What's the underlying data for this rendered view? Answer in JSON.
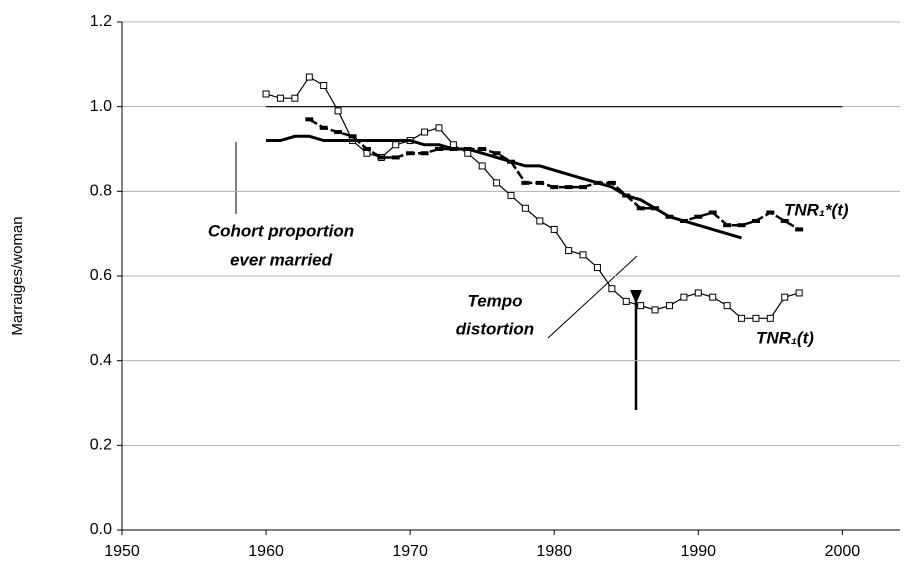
{
  "chart_data": {
    "type": "line",
    "ylabel": "Marraiges/woman",
    "xlim": [
      1950,
      2004
    ],
    "xticks": [
      1950,
      1960,
      1970,
      1980,
      1990,
      2000
    ],
    "ylim": [
      0,
      1.2
    ],
    "yticks": [
      {
        "value": 0,
        "label": "0.0"
      },
      {
        "value": 0.2,
        "label": "0.2"
      },
      {
        "value": 0.4,
        "label": "0.4"
      },
      {
        "value": 0.6,
        "label": "0.6"
      },
      {
        "value": 0.8,
        "label": "0.8"
      },
      {
        "value": 1.0,
        "label": "1.0"
      },
      {
        "value": 1.2,
        "label": "1.2"
      }
    ],
    "grid": true,
    "annotations": [
      "Cohort proportion",
      "ever married",
      "Tempo",
      "distortion"
    ],
    "series": [
      {
        "color": "#000000",
        "style": "thin",
        "x": [
          1960,
          2000
        ],
        "values": [
          1,
          1
        ]
      },
      {
        "name": "TNR₁(t)",
        "color": "#000000",
        "style": "square",
        "x": [
          1960,
          1961,
          1962,
          1963,
          1964,
          1965,
          1966,
          1967,
          1968,
          1969,
          1970,
          1971,
          1972,
          1973,
          1974,
          1975,
          1976,
          1977,
          1978,
          1979,
          1980,
          1981,
          1982,
          1983,
          1984,
          1985,
          1986,
          1987,
          1988,
          1989,
          1990,
          1991,
          1992,
          1993,
          1994,
          1995,
          1996,
          1997
        ],
        "values": [
          1.03,
          1.02,
          1.02,
          1.07,
          1.05,
          0.99,
          0.92,
          0.89,
          0.88,
          0.91,
          0.92,
          0.94,
          0.95,
          0.91,
          0.89,
          0.86,
          0.82,
          0.79,
          0.76,
          0.73,
          0.71,
          0.66,
          0.65,
          0.62,
          0.57,
          0.54,
          0.53,
          0.52,
          0.53,
          0.55,
          0.56,
          0.55,
          0.53,
          0.5,
          0.5,
          0.5,
          0.55,
          0.56
        ]
      },
      {
        "name": "TNR₁*(t)",
        "color": "#000000",
        "style": "dash",
        "x": [
          1963,
          1964,
          1965,
          1966,
          1967,
          1968,
          1969,
          1970,
          1971,
          1972,
          1973,
          1974,
          1975,
          1976,
          1977,
          1978,
          1979,
          1980,
          1981,
          1982,
          1983,
          1984,
          1985,
          1986,
          1987,
          1988,
          1989,
          1990,
          1991,
          1992,
          1993,
          1994,
          1995,
          1996,
          1997
        ],
        "values": [
          0.97,
          0.95,
          0.94,
          0.93,
          0.9,
          0.88,
          0.88,
          0.89,
          0.89,
          0.9,
          0.9,
          0.9,
          0.9,
          0.89,
          0.87,
          0.82,
          0.82,
          0.81,
          0.81,
          0.81,
          0.82,
          0.82,
          0.79,
          0.76,
          0.76,
          0.74,
          0.73,
          0.74,
          0.75,
          0.72,
          0.72,
          0.73,
          0.75,
          0.73,
          0.71
        ]
      },
      {
        "color": "#000000",
        "style": "thick",
        "x": [
          1960,
          1961,
          1962,
          1963,
          1964,
          1965,
          1966,
          1967,
          1968,
          1969,
          1970,
          1971,
          1972,
          1973,
          1974,
          1975,
          1976,
          1977,
          1978,
          1979,
          1980,
          1981,
          1982,
          1983,
          1984,
          1985,
          1986,
          1987,
          1988,
          1989,
          1990,
          1991,
          1992,
          1993
        ],
        "values": [
          0.92,
          0.92,
          0.93,
          0.93,
          0.92,
          0.92,
          0.92,
          0.92,
          0.92,
          0.92,
          0.92,
          0.91,
          0.91,
          0.9,
          0.9,
          0.89,
          0.88,
          0.87,
          0.86,
          0.86,
          0.85,
          0.84,
          0.83,
          0.82,
          0.81,
          0.79,
          0.78,
          0.76,
          0.74,
          0.73,
          0.72,
          0.71,
          0.7,
          0.69
        ]
      }
    ]
  }
}
